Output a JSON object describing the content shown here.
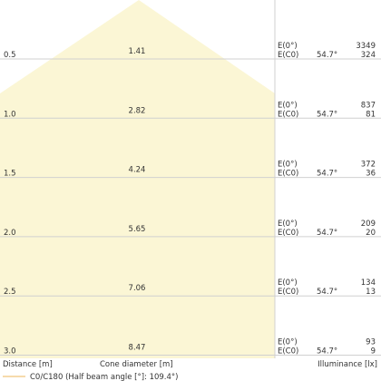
{
  "chart_data": {
    "type": "area",
    "xlabel": "Distance [m]",
    "cone_label": "Cone diameter [m]",
    "ylabel": "Illuminance [lx]",
    "legend": "C0/C180 (Half beam angle [°]: 109.4°)",
    "e0_label": "E(0°)",
    "ec0_label": "E(C0)",
    "angle_label": "54.7°",
    "rows": [
      {
        "distance": "0.5",
        "cone": "1.41",
        "e0": "3349",
        "ec0": "324"
      },
      {
        "distance": "1.0",
        "cone": "2.82",
        "e0": "837",
        "ec0": "81"
      },
      {
        "distance": "1.5",
        "cone": "4.24",
        "e0": "372",
        "ec0": "36"
      },
      {
        "distance": "2.0",
        "cone": "5.65",
        "e0": "209",
        "ec0": "20"
      },
      {
        "distance": "2.5",
        "cone": "7.06",
        "e0": "134",
        "ec0": "13"
      },
      {
        "distance": "3.0",
        "cone": "8.47",
        "e0": "93",
        "ec0": "9"
      }
    ],
    "colors": {
      "fill": "#fbf6d5",
      "beam": "#f3cf90",
      "grid": "#d0d0d0",
      "text": "#333333"
    }
  }
}
